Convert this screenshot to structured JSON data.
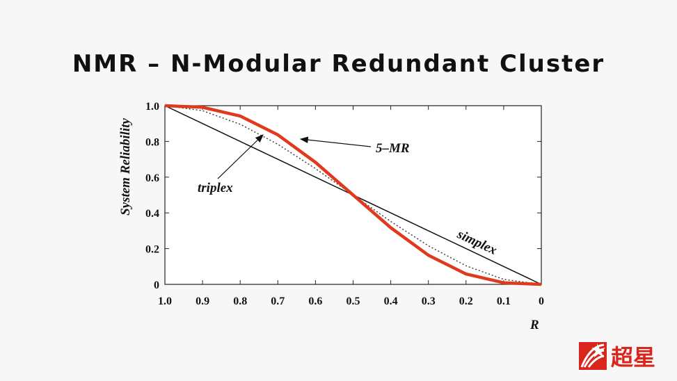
{
  "slide": {
    "title": "NMR – N-Modular Redundant Cluster",
    "logo_text": "超星"
  },
  "chart_data": {
    "type": "line",
    "title": "",
    "xlabel": "R",
    "ylabel": "System Reliability",
    "xlim": [
      1.0,
      0
    ],
    "ylim": [
      0,
      1.0
    ],
    "x_ticks": [
      "1.0",
      "0.9",
      "0.8",
      "0.7",
      "0.6",
      "0.5",
      "0.4",
      "0.3",
      "0.2",
      "0.1",
      "0"
    ],
    "y_ticks": [
      "0",
      "0.2",
      "0.4",
      "0.6",
      "0.8",
      "1.0"
    ],
    "series": [
      {
        "name": "simplex",
        "color": "#111111",
        "style": "solid",
        "x": [
          1.0,
          0.9,
          0.8,
          0.7,
          0.6,
          0.5,
          0.4,
          0.3,
          0.2,
          0.1,
          0
        ],
        "y": [
          1.0,
          0.9,
          0.8,
          0.7,
          0.6,
          0.5,
          0.4,
          0.3,
          0.2,
          0.1,
          0
        ]
      },
      {
        "name": "triplex",
        "color": "#333333",
        "style": "dotted",
        "x": [
          1.0,
          0.9,
          0.8,
          0.7,
          0.6,
          0.5,
          0.4,
          0.3,
          0.2,
          0.1,
          0
        ],
        "y": [
          1.0,
          0.972,
          0.896,
          0.784,
          0.648,
          0.5,
          0.352,
          0.216,
          0.104,
          0.028,
          0
        ]
      },
      {
        "name": "5-MR",
        "color": "#e03a1e",
        "style": "thick",
        "x": [
          1.0,
          0.9,
          0.8,
          0.7,
          0.6,
          0.5,
          0.4,
          0.3,
          0.2,
          0.1,
          0
        ],
        "y": [
          1.0,
          0.991,
          0.942,
          0.837,
          0.683,
          0.5,
          0.317,
          0.163,
          0.058,
          0.009,
          0
        ]
      }
    ],
    "annotations": [
      "5–MR",
      "triplex",
      "simplex"
    ]
  }
}
